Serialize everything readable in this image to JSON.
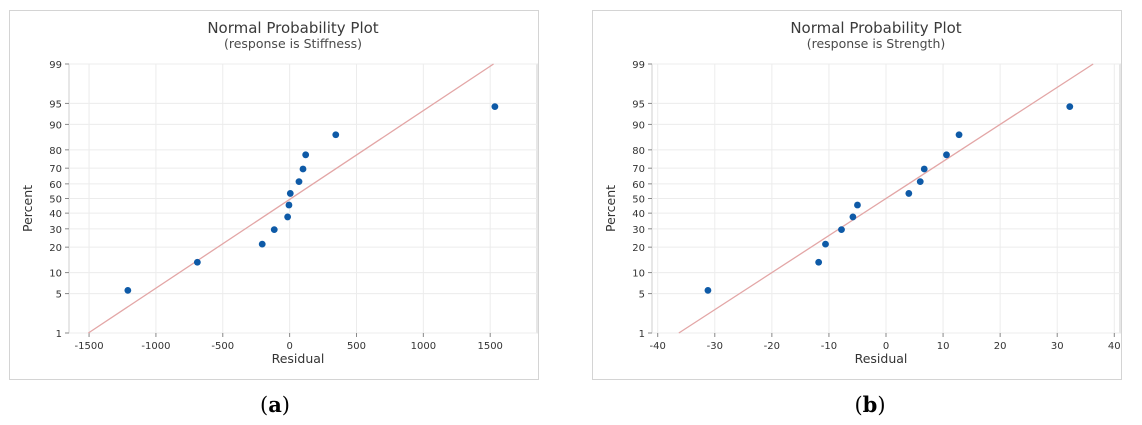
{
  "chart_data": [
    {
      "type": "scatter",
      "title": "Normal Probability Plot",
      "subtitle": "(response is Stiffness)",
      "xlabel": "Residual",
      "ylabel": "Percent",
      "y_scale": "normal-probability",
      "xlim": [
        -1650,
        1850
      ],
      "ylim": [
        1,
        99
      ],
      "xticks": [
        -1500,
        -1000,
        -500,
        0,
        500,
        1000,
        1500
      ],
      "xtick_labels": [
        "-1500",
        "-1000",
        "-500",
        "0",
        "500",
        "1000",
        "1500"
      ],
      "yticks": [
        1,
        5,
        10,
        20,
        30,
        40,
        50,
        60,
        70,
        80,
        90,
        95,
        99
      ],
      "ytick_labels": [
        "1",
        "5",
        "10",
        "20",
        "30",
        "40",
        "50",
        "60",
        "70",
        "80",
        "90",
        "95",
        "99"
      ],
      "grid": true,
      "points": [
        {
          "x": -1210,
          "y": 5.6
        },
        {
          "x": -690,
          "y": 13.5
        },
        {
          "x": -205,
          "y": 21.5
        },
        {
          "x": -115,
          "y": 29.5
        },
        {
          "x": -15,
          "y": 37.5
        },
        {
          "x": -5,
          "y": 45.5
        },
        {
          "x": 5,
          "y": 53.5
        },
        {
          "x": 70,
          "y": 61.5
        },
        {
          "x": 100,
          "y": 69.5
        },
        {
          "x": 120,
          "y": 77.5
        },
        {
          "x": 345,
          "y": 86.5
        },
        {
          "x": 1535,
          "y": 94.4
        }
      ],
      "fit_line": [
        {
          "x": -1505,
          "y": 1
        },
        {
          "x": 1525,
          "y": 99
        }
      ],
      "marker_color": "#0e5aa7",
      "line_color": "#e3a6a6"
    },
    {
      "type": "scatter",
      "title": "Normal Probability Plot",
      "subtitle": "(response is Strength)",
      "xlabel": "Residual",
      "ylabel": "Percent",
      "y_scale": "normal-probability",
      "xlim": [
        -41,
        41
      ],
      "ylim": [
        1,
        99
      ],
      "xticks": [
        -40,
        -30,
        -20,
        -10,
        0,
        10,
        20,
        30,
        40
      ],
      "xtick_labels": [
        "-40",
        "-30",
        "-20",
        "-10",
        "0",
        "10",
        "20",
        "30",
        "40"
      ],
      "yticks": [
        1,
        5,
        10,
        20,
        30,
        40,
        50,
        60,
        70,
        80,
        90,
        95,
        99
      ],
      "ytick_labels": [
        "1",
        "5",
        "10",
        "20",
        "30",
        "40",
        "50",
        "60",
        "70",
        "80",
        "90",
        "95",
        "99"
      ],
      "grid": true,
      "points": [
        {
          "x": -31.2,
          "y": 5.6
        },
        {
          "x": -11.8,
          "y": 13.5
        },
        {
          "x": -10.6,
          "y": 21.5
        },
        {
          "x": -7.8,
          "y": 29.5
        },
        {
          "x": -5.8,
          "y": 37.5
        },
        {
          "x": -5.0,
          "y": 45.5
        },
        {
          "x": 4.0,
          "y": 53.5
        },
        {
          "x": 6.0,
          "y": 61.5
        },
        {
          "x": 6.7,
          "y": 69.5
        },
        {
          "x": 10.6,
          "y": 77.5
        },
        {
          "x": 12.8,
          "y": 86.5
        },
        {
          "x": 32.2,
          "y": 94.4
        }
      ],
      "fit_line": [
        {
          "x": -36.3,
          "y": 1
        },
        {
          "x": 36.3,
          "y": 99
        }
      ],
      "marker_color": "#0e5aa7",
      "line_color": "#e3a6a6"
    }
  ],
  "captions": {
    "a": "a",
    "b": "b"
  }
}
